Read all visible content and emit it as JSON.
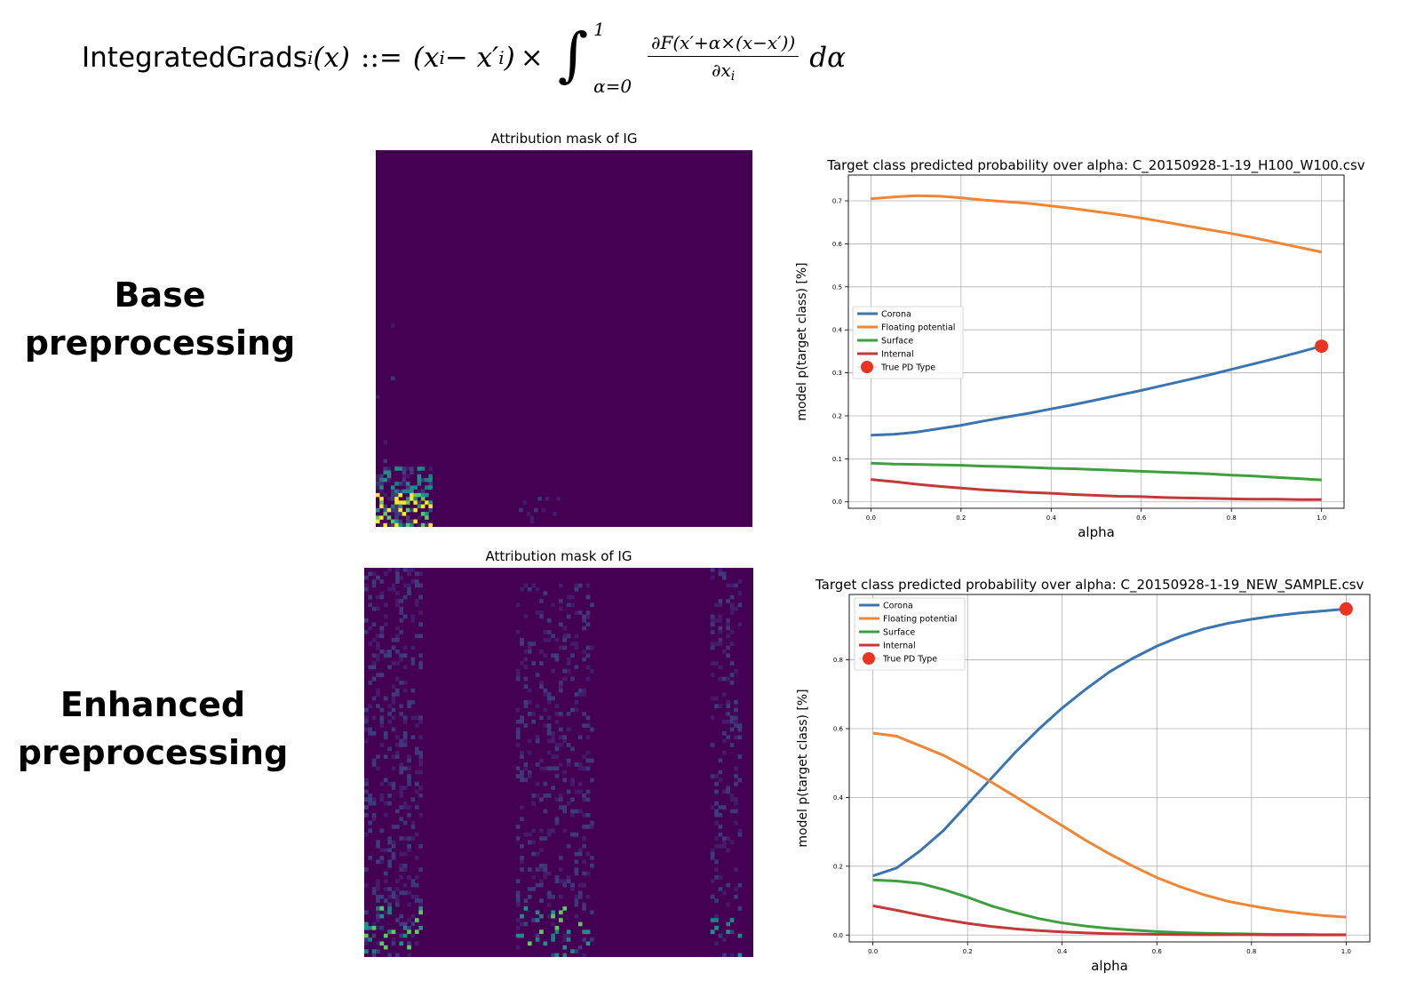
{
  "formula": {
    "lhs_name": "IntegratedGrads",
    "lhs_sub": "i",
    "lhs_arg": "(x)",
    "assign": "::=",
    "diff": "(x",
    "diff_sub": "i",
    "minus": " − x′",
    "diff_close": ")",
    "times": "×",
    "integral": "∫",
    "upper": "1",
    "lower": "α=0",
    "numerator": "∂F(x′+α×(x−x′))",
    "denominator": "∂x",
    "den_sub": "i",
    "dalpha": "dα"
  },
  "rows": {
    "base_label_line1": "Base",
    "base_label_line2": "preprocessing",
    "enh_label_line1": "Enhanced",
    "enh_label_line2": "preprocessing"
  },
  "heatmaps": {
    "base_title": "Attribution mask of IG",
    "enh_title": "Attribution mask of IG",
    "colors": {
      "background": "#440154",
      "low": "#3b528b",
      "mid": "#21918c",
      "high": "#5ec962",
      "peak": "#fde725"
    }
  },
  "chart_data": [
    {
      "type": "line",
      "title": "Target class predicted probability over alpha: C_20150928-1-19_H100_W100.csv",
      "xlabel": "alpha",
      "ylabel": "model p(target class) [%]",
      "xlim": [
        -0.05,
        1.05
      ],
      "ylim": [
        -0.015,
        0.76
      ],
      "xticks": [
        "0.0",
        "0.2",
        "0.4",
        "0.6",
        "0.8",
        "1.0"
      ],
      "yticks": [
        "0.0",
        "0.1",
        "0.2",
        "0.3",
        "0.4",
        "0.5",
        "0.6",
        "0.7"
      ],
      "grid": true,
      "legend": "center-left",
      "x": [
        0,
        0.05,
        0.1,
        0.15,
        0.2,
        0.25,
        0.3,
        0.35,
        0.4,
        0.45,
        0.5,
        0.55,
        0.6,
        0.65,
        0.7,
        0.75,
        0.8,
        0.85,
        0.9,
        0.95,
        1.0
      ],
      "series": [
        {
          "name": "Corona",
          "color": "#3a75b0",
          "values": [
            0.155,
            0.157,
            0.162,
            0.17,
            0.178,
            0.188,
            0.197,
            0.206,
            0.216,
            0.226,
            0.237,
            0.248,
            0.259,
            0.271,
            0.283,
            0.295,
            0.308,
            0.321,
            0.334,
            0.348,
            0.362
          ]
        },
        {
          "name": "Floating potential",
          "color": "#ef8636",
          "values": [
            0.705,
            0.709,
            0.712,
            0.711,
            0.707,
            0.702,
            0.698,
            0.694,
            0.688,
            0.682,
            0.675,
            0.668,
            0.66,
            0.651,
            0.642,
            0.633,
            0.624,
            0.614,
            0.603,
            0.592,
            0.581
          ]
        },
        {
          "name": "Surface",
          "color": "#3f9e3f",
          "values": [
            0.09,
            0.088,
            0.087,
            0.086,
            0.085,
            0.083,
            0.082,
            0.08,
            0.078,
            0.077,
            0.075,
            0.073,
            0.071,
            0.069,
            0.067,
            0.065,
            0.062,
            0.06,
            0.057,
            0.054,
            0.051
          ]
        },
        {
          "name": "Internal",
          "color": "#c5383a",
          "values": [
            0.052,
            0.047,
            0.041,
            0.036,
            0.032,
            0.028,
            0.025,
            0.022,
            0.02,
            0.017,
            0.015,
            0.013,
            0.012,
            0.01,
            0.009,
            0.008,
            0.007,
            0.006,
            0.006,
            0.005,
            0.005
          ]
        }
      ],
      "marker": {
        "name": "True PD Type",
        "x": 1.0,
        "y": 0.362,
        "color": "#e93323"
      }
    },
    {
      "type": "line",
      "title": "Target class predicted probability over alpha: C_20150928-1-19_NEW_SAMPLE.csv",
      "xlabel": "alpha",
      "ylabel": "model p(target class) [%]",
      "xlim": [
        -0.05,
        1.05
      ],
      "ylim": [
        -0.02,
        0.99
      ],
      "xticks": [
        "0.0",
        "0.2",
        "0.4",
        "0.6",
        "0.8",
        "1.0"
      ],
      "yticks": [
        "0.0",
        "0.2",
        "0.4",
        "0.6",
        "0.8"
      ],
      "grid": true,
      "legend": "top-left",
      "x": [
        0,
        0.05,
        0.1,
        0.15,
        0.2,
        0.25,
        0.3,
        0.35,
        0.4,
        0.45,
        0.5,
        0.55,
        0.6,
        0.65,
        0.7,
        0.75,
        0.8,
        0.85,
        0.9,
        0.95,
        1.0
      ],
      "series": [
        {
          "name": "Corona",
          "color": "#3a75b0",
          "values": [
            0.172,
            0.195,
            0.245,
            0.305,
            0.38,
            0.455,
            0.53,
            0.598,
            0.66,
            0.715,
            0.765,
            0.805,
            0.84,
            0.868,
            0.89,
            0.906,
            0.918,
            0.928,
            0.936,
            0.942,
            0.948
          ]
        },
        {
          "name": "Floating potential",
          "color": "#ef8636",
          "values": [
            0.587,
            0.578,
            0.55,
            0.522,
            0.485,
            0.445,
            0.403,
            0.36,
            0.318,
            0.275,
            0.236,
            0.2,
            0.167,
            0.14,
            0.117,
            0.098,
            0.085,
            0.073,
            0.064,
            0.057,
            0.052
          ]
        },
        {
          "name": "Surface",
          "color": "#3f9e3f",
          "values": [
            0.16,
            0.157,
            0.15,
            0.132,
            0.11,
            0.085,
            0.065,
            0.048,
            0.035,
            0.026,
            0.019,
            0.014,
            0.01,
            0.007,
            0.005,
            0.004,
            0.003,
            0.002,
            0.002,
            0.001,
            0.001
          ]
        },
        {
          "name": "Internal",
          "color": "#c5383a",
          "values": [
            0.085,
            0.072,
            0.058,
            0.045,
            0.034,
            0.025,
            0.018,
            0.013,
            0.009,
            0.006,
            0.004,
            0.003,
            0.002,
            0.0015,
            0.001,
            0.001,
            0.001,
            0.0005,
            0.0005,
            0.0005,
            0.0005
          ]
        }
      ],
      "marker": {
        "name": "True PD Type",
        "x": 1.0,
        "y": 0.948,
        "color": "#e93323"
      }
    }
  ]
}
